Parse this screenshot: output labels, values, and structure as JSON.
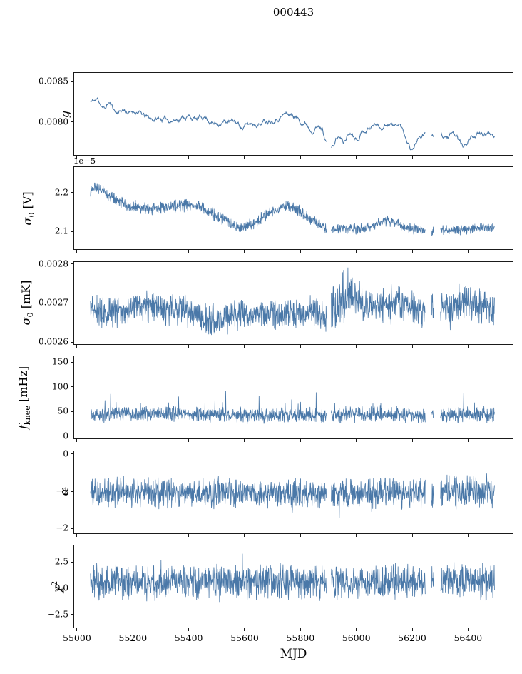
{
  "chart_data": {
    "type": "line",
    "title": "000443",
    "xlabel": "MJD",
    "legend": "none",
    "grid": false,
    "line_color": "#4a78a8",
    "xlim": [
      54990,
      56565
    ],
    "xticks": [
      55000,
      55200,
      55400,
      55600,
      55800,
      56000,
      56200,
      56400
    ],
    "x_data_range": [
      55051,
      56497
    ],
    "gaps": [
      [
        55896,
        55912
      ],
      [
        56250,
        56272
      ],
      [
        56280,
        56304
      ]
    ],
    "panels": [
      {
        "id": "g",
        "ylabel_html": "<i>g</i>",
        "ylim": [
          0.00757,
          0.00861
        ],
        "yticks": [
          {
            "v": 0.008,
            "label": "0.0080"
          },
          {
            "v": 0.0085,
            "label": "0.0085"
          }
        ],
        "style": "smooth",
        "points": 820,
        "noise_amp": 2.8e-05,
        "trend": [
          [
            55051,
            0.00824
          ],
          [
            55078,
            0.00827
          ],
          [
            55102,
            0.00815
          ],
          [
            55117,
            0.00824
          ],
          [
            55143,
            0.00811
          ],
          [
            55168,
            0.00815
          ],
          [
            55194,
            0.0081
          ],
          [
            55219,
            0.00813
          ],
          [
            55245,
            0.00805
          ],
          [
            55270,
            0.00802
          ],
          [
            55300,
            0.00803
          ],
          [
            55330,
            0.00801
          ],
          [
            55360,
            0.00803
          ],
          [
            55398,
            0.00807
          ],
          [
            55434,
            0.00801
          ],
          [
            55460,
            0.00806
          ],
          [
            55493,
            0.00797
          ],
          [
            55526,
            0.008
          ],
          [
            55570,
            0.00798
          ],
          [
            55596,
            0.00792
          ],
          [
            55629,
            0.00797
          ],
          [
            55665,
            0.00799
          ],
          [
            55698,
            0.00804
          ],
          [
            55723,
            0.00807
          ],
          [
            55749,
            0.0081
          ],
          [
            55774,
            0.00808
          ],
          [
            55800,
            0.00802
          ],
          [
            55825,
            0.00798
          ],
          [
            55838,
            0.00791
          ],
          [
            55858,
            0.00795
          ],
          [
            55881,
            0.00791
          ],
          [
            55894,
            0.00776
          ],
          [
            55907,
            0.00769
          ],
          [
            55919,
            0.00766
          ],
          [
            55932,
            0.00778
          ],
          [
            55945,
            0.00779
          ],
          [
            55957,
            0.00771
          ],
          [
            55970,
            0.00782
          ],
          [
            55986,
            0.00786
          ],
          [
            56004,
            0.0078
          ],
          [
            56022,
            0.00788
          ],
          [
            56037,
            0.00791
          ],
          [
            56055,
            0.00793
          ],
          [
            56073,
            0.00798
          ],
          [
            56088,
            0.00792
          ],
          [
            56106,
            0.00797
          ],
          [
            56124,
            0.00799
          ],
          [
            56139,
            0.00793
          ],
          [
            56157,
            0.00796
          ],
          [
            56183,
            0.00778
          ],
          [
            56201,
            0.00765
          ],
          [
            56226,
            0.0078
          ],
          [
            56252,
            0.00783
          ],
          [
            56277,
            0.00781
          ],
          [
            56303,
            0.00783
          ],
          [
            56328,
            0.0078
          ],
          [
            56344,
            0.00781
          ],
          [
            56365,
            0.00778
          ],
          [
            56387,
            0.00765
          ],
          [
            56405,
            0.00777
          ],
          [
            56430,
            0.00783
          ],
          [
            56456,
            0.00781
          ],
          [
            56481,
            0.00784
          ],
          [
            56497,
            0.00785
          ]
        ]
      },
      {
        "id": "sigma0-volts",
        "ylabel_html": "<i>σ</i><sub>0</sub> [V]",
        "offset_text": "1e−5",
        "scale_note": "values are shown_value × 1e-5 volts",
        "ylim": [
          2.05,
          2.265
        ],
        "yticks": [
          {
            "v": 2.1,
            "label": "2.1"
          },
          {
            "v": 2.2,
            "label": "2.2"
          }
        ],
        "points": 1500,
        "amp": [
          [
            55051,
            0.014
          ],
          [
            55400,
            0.013
          ],
          [
            55700,
            0.012
          ],
          [
            56000,
            0.011
          ],
          [
            56500,
            0.01
          ]
        ],
        "trend": [
          [
            55051,
            2.205
          ],
          [
            55080,
            2.21
          ],
          [
            55120,
            2.19
          ],
          [
            55180,
            2.165
          ],
          [
            55250,
            2.155
          ],
          [
            55300,
            2.16
          ],
          [
            55350,
            2.163
          ],
          [
            55420,
            2.165
          ],
          [
            55470,
            2.15
          ],
          [
            55520,
            2.13
          ],
          [
            55570,
            2.11
          ],
          [
            55600,
            2.105
          ],
          [
            55640,
            2.12
          ],
          [
            55690,
            2.145
          ],
          [
            55730,
            2.16
          ],
          [
            55760,
            2.163
          ],
          [
            55800,
            2.15
          ],
          [
            55840,
            2.13
          ],
          [
            55880,
            2.11
          ],
          [
            55910,
            2.1
          ],
          [
            55960,
            2.105
          ],
          [
            56010,
            2.103
          ],
          [
            56060,
            2.11
          ],
          [
            56100,
            2.125
          ],
          [
            56140,
            2.12
          ],
          [
            56180,
            2.108
          ],
          [
            56220,
            2.1
          ],
          [
            56260,
            2.098
          ],
          [
            56310,
            2.1
          ],
          [
            56360,
            2.1
          ],
          [
            56410,
            2.103
          ],
          [
            56460,
            2.107
          ],
          [
            56497,
            2.11
          ]
        ]
      },
      {
        "id": "sigma0-mk",
        "ylabel_html": "<i>σ</i><sub>0</sub> [mK]",
        "ylim": [
          0.002592,
          0.002805
        ],
        "yticks": [
          {
            "v": 0.0026,
            "label": "0.0026"
          },
          {
            "v": 0.0027,
            "label": "0.0027"
          },
          {
            "v": 0.0028,
            "label": "0.0028"
          }
        ],
        "points": 1500,
        "amp": [
          [
            55051,
            3.2e-05
          ],
          [
            55900,
            3.3e-05
          ],
          [
            55950,
            5.5e-05
          ],
          [
            56010,
            4.8e-05
          ],
          [
            56060,
            3.3e-05
          ],
          [
            56130,
            5e-05
          ],
          [
            56170,
            3.3e-05
          ],
          [
            56390,
            4.6e-05
          ],
          [
            56430,
            3.3e-05
          ],
          [
            56500,
            3.6e-05
          ]
        ],
        "trend": [
          [
            55051,
            0.00268
          ],
          [
            55120,
            0.002675
          ],
          [
            55200,
            0.002685
          ],
          [
            55260,
            0.00269
          ],
          [
            55320,
            0.00268
          ],
          [
            55380,
            0.002685
          ],
          [
            55430,
            0.00267
          ],
          [
            55470,
            0.00265
          ],
          [
            55520,
            0.002655
          ],
          [
            55570,
            0.00267
          ],
          [
            55620,
            0.002668
          ],
          [
            55680,
            0.002672
          ],
          [
            55740,
            0.002668
          ],
          [
            55800,
            0.002672
          ],
          [
            55860,
            0.002678
          ],
          [
            55900,
            0.002665
          ],
          [
            55950,
            0.002715
          ],
          [
            55980,
            0.002725
          ],
          [
            56010,
            0.002705
          ],
          [
            56050,
            0.002685
          ],
          [
            56100,
            0.002692
          ],
          [
            56150,
            0.002715
          ],
          [
            56180,
            0.002685
          ],
          [
            56250,
            0.002678
          ],
          [
            56300,
            0.002682
          ],
          [
            56350,
            0.00268
          ],
          [
            56400,
            0.002712
          ],
          [
            56440,
            0.00269
          ],
          [
            56497,
            0.002687
          ]
        ]
      },
      {
        "id": "fknee",
        "ylabel_html": "<i>f</i><sub>knee</sub> [mHz]",
        "ylim": [
          -8,
          162
        ],
        "yticks": [
          {
            "v": 0,
            "label": "0"
          },
          {
            "v": 50,
            "label": "50"
          },
          {
            "v": 100,
            "label": "100"
          },
          {
            "v": 150,
            "label": "150"
          }
        ],
        "points": 1500,
        "amp": [
          [
            55051,
            13
          ],
          [
            56500,
            13
          ]
        ],
        "spike": {
          "p": 0.018,
          "amp": 45,
          "dir": "up"
        },
        "trend": [
          [
            55051,
            42
          ],
          [
            55200,
            43
          ],
          [
            55400,
            42
          ],
          [
            55600,
            40
          ],
          [
            55800,
            41
          ],
          [
            55900,
            40
          ],
          [
            56000,
            42
          ],
          [
            56100,
            43
          ],
          [
            56200,
            40
          ],
          [
            56300,
            38
          ],
          [
            56400,
            42
          ],
          [
            56497,
            40
          ]
        ]
      },
      {
        "id": "alpha",
        "ylabel_html": "<i>α</i>",
        "ylim": [
          -2.16,
          0.08
        ],
        "yticks": [
          {
            "v": 0,
            "label": "0"
          },
          {
            "v": -1,
            "label": "−1"
          },
          {
            "v": -2,
            "label": "−2"
          }
        ],
        "points": 1500,
        "amp": [
          [
            55051,
            0.32
          ],
          [
            56290,
            0.32
          ],
          [
            56330,
            0.38
          ],
          [
            56500,
            0.38
          ]
        ],
        "spike": {
          "p": 0.012,
          "amp": 0.6,
          "dir": "down"
        },
        "trend": [
          [
            55051,
            -1.02
          ],
          [
            55300,
            -1.05
          ],
          [
            55600,
            -1.05
          ],
          [
            55900,
            -1.08
          ],
          [
            56200,
            -1.05
          ],
          [
            56497,
            -1.02
          ]
        ]
      },
      {
        "id": "chi2",
        "ylabel_html": "<i>χ</i><sup>2</sup>",
        "ylim": [
          -3.9,
          4.1
        ],
        "yticks": [
          {
            "v": -2.5,
            "label": "−2.5"
          },
          {
            "v": 0,
            "label": "0.0"
          },
          {
            "v": 2.5,
            "label": "2.5"
          }
        ],
        "points": 1500,
        "amp": [
          [
            55051,
            1.35
          ],
          [
            56500,
            1.35
          ]
        ],
        "spike": {
          "p": 0.02,
          "amp": 1.2,
          "dir": "both"
        },
        "trend": [
          [
            55051,
            0.55
          ],
          [
            55500,
            0.6
          ],
          [
            55900,
            0.5
          ],
          [
            56200,
            0.55
          ],
          [
            56497,
            0.6
          ]
        ]
      }
    ]
  }
}
